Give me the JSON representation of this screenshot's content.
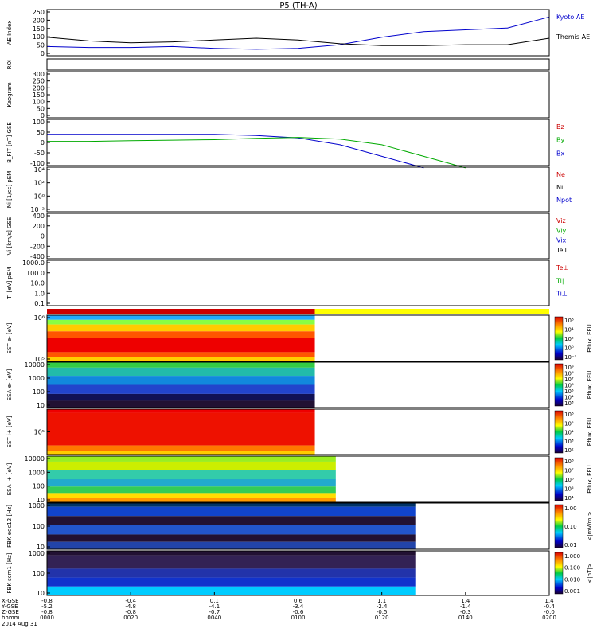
{
  "title": "P5 (TH-A)",
  "date_label": "2014 Aug 31",
  "panels": [
    {
      "id": "ae",
      "ylabel": "AE Index",
      "ticks": [
        "250",
        "200",
        "150",
        "100",
        "50",
        "0"
      ],
      "legend": [
        {
          "text": "Kyoto AE",
          "color": "#0000cc"
        },
        {
          "text": "Themis AE",
          "color": "#000000"
        }
      ]
    },
    {
      "id": "roi",
      "ylabel": "ROI",
      "ticks": [],
      "legend": []
    },
    {
      "id": "keogram",
      "ylabel": "Keogram",
      "ticks": [
        "300",
        "250",
        "200",
        "150",
        "100",
        "50",
        "0"
      ],
      "legend": []
    },
    {
      "id": "bfit",
      "ylabel": "B_FIT [nT] GSE",
      "ticks": [
        "100",
        "50",
        "0",
        "-50",
        "-100"
      ],
      "legend": [
        {
          "text": "Bz",
          "color": "#cc0000"
        },
        {
          "text": "By",
          "color": "#00aa00"
        },
        {
          "text": "Bx",
          "color": "#0000cc"
        }
      ]
    },
    {
      "id": "ni",
      "ylabel": "Ni [1/cc] pEM",
      "ticks": [
        "10⁴",
        "10²",
        "10⁰",
        "10⁻²"
      ],
      "legend": [
        {
          "text": "Ne",
          "color": "#cc0000"
        },
        {
          "text": "Ni",
          "color": "#000000"
        },
        {
          "text": "Npot",
          "color": "#0000cc"
        }
      ]
    },
    {
      "id": "vi",
      "ylabel": "Vi [km/s] GSE",
      "ticks": [
        "400",
        "200",
        "0",
        "-200",
        "-400"
      ],
      "legend": [
        {
          "text": "Viz",
          "color": "#cc0000"
        },
        {
          "text": "Viy",
          "color": "#00aa00"
        },
        {
          "text": "Vix",
          "color": "#0000cc"
        },
        {
          "text": "Tell",
          "color": "#000000"
        }
      ]
    },
    {
      "id": "ti",
      "ylabel": "Ti [eV] pEM",
      "ticks": [
        "1000.0",
        "100.0",
        "10.0",
        "1.0",
        "0.1"
      ],
      "legend": [
        {
          "text": "Te⊥",
          "color": "#cc0000"
        },
        {
          "text": "Ti∥",
          "color": "#00aa00"
        },
        {
          "text": "Ti⊥",
          "color": "#0000cc"
        }
      ]
    },
    {
      "id": "sst_e",
      "ylabel": "SST e- [eV]",
      "ticks": [
        "10⁶",
        "10⁵"
      ],
      "legend": []
    },
    {
      "id": "esa_e",
      "ylabel": "ESA e- [eV]",
      "ticks": [
        "10000",
        "1000",
        "100",
        "10"
      ],
      "legend": []
    },
    {
      "id": "sst_i",
      "ylabel": "SST i+ [eV]",
      "ticks": [
        "10⁵"
      ],
      "legend": []
    },
    {
      "id": "esa_i",
      "ylabel": "ESA i+ [eV]",
      "ticks": [
        "10000",
        "1000",
        "100",
        "10"
      ],
      "legend": []
    },
    {
      "id": "fbk_edc",
      "ylabel": "FBK edc12 [Hz]",
      "ticks": [
        "1000",
        "100",
        "10"
      ],
      "legend": []
    },
    {
      "id": "fbk_scm",
      "ylabel": "FBK scm1 [Hz]",
      "ticks": [
        "1000",
        "100",
        "10"
      ],
      "legend": []
    }
  ],
  "colorbars": [
    {
      "panel": "sst_e",
      "label": "Eflux, EFU",
      "ticks": [
        "10⁶",
        "10⁴",
        "10²",
        "10⁰",
        "10⁻²"
      ]
    },
    {
      "panel": "esa_e",
      "label": "Eflux, EFU",
      "ticks": [
        "10⁹",
        "10⁸",
        "10⁷",
        "10⁶",
        "10⁵",
        "10⁴",
        "10³"
      ]
    },
    {
      "panel": "sst_i",
      "label": "Eflux, EFU",
      "ticks": [
        "10⁶",
        "10⁵",
        "10⁴",
        "10³",
        "10²"
      ]
    },
    {
      "panel": "esa_i",
      "label": "Eflux, EFU",
      "ticks": [
        "10⁸",
        "10⁷",
        "10⁶",
        "10⁵",
        "10⁴"
      ]
    },
    {
      "panel": "fbk_edc",
      "label": "<|mV/m|>",
      "ticks": [
        "1.00",
        "0.10",
        "0.01"
      ]
    },
    {
      "panel": "fbk_scm",
      "label": "<|nT|>",
      "ticks": [
        "1.000",
        "0.100",
        "0.010",
        "0.001"
      ]
    }
  ],
  "x_axis": {
    "row_labels": [
      "X-GSE",
      "Y-GSE",
      "Z-GSE",
      "hhmm"
    ],
    "ticks": [
      {
        "x": "-0.8",
        "y": "-5.2",
        "z": "-0.8",
        "t": "0000"
      },
      {
        "x": "-0.4",
        "y": "-4.8",
        "z": "-0.8",
        "t": "0020"
      },
      {
        "x": "0.1",
        "y": "-4.1",
        "z": "-0.7",
        "t": "0040"
      },
      {
        "x": "0.6",
        "y": "-3.4",
        "z": "-0.6",
        "t": "0100"
      },
      {
        "x": "1.1",
        "y": "-2.4",
        "z": "-0.5",
        "t": "0120"
      },
      {
        "x": "1.4",
        "y": "-1.4",
        "z": "-0.3",
        "t": "0140"
      },
      {
        "x": "1.4",
        "y": "-0.4",
        "z": "-0.0",
        "t": "0200"
      }
    ]
  },
  "chart_data": {
    "type": "line",
    "x_minutes": [
      0,
      10,
      20,
      30,
      40,
      50,
      60,
      70,
      80,
      90,
      100,
      110,
      120
    ],
    "series": [
      {
        "name": "Kyoto AE",
        "panel": "ae",
        "color": "#0000cc",
        "values": [
          50,
          45,
          45,
          50,
          40,
          35,
          40,
          60,
          100,
          130,
          140,
          150,
          210
        ]
      },
      {
        "name": "Themis AE",
        "panel": "ae",
        "color": "#000000",
        "values": [
          100,
          80,
          70,
          75,
          85,
          95,
          85,
          65,
          55,
          55,
          60,
          60,
          95
        ]
      },
      {
        "name": "Bx",
        "panel": "bfit",
        "color": "#0000cc",
        "values": [
          35,
          35,
          35,
          35,
          35,
          30,
          20,
          -10,
          -60,
          -110,
          null,
          null,
          null
        ]
      },
      {
        "name": "By",
        "panel": "bfit",
        "color": "#00aa00",
        "values": [
          5,
          5,
          8,
          10,
          12,
          18,
          22,
          15,
          -10,
          -60,
          -110,
          null,
          null
        ]
      }
    ],
    "colors": {
      "sw_bar_red": "#cc0000",
      "sw_bar_yellow": "#ffff00",
      "axis": "#000000"
    }
  }
}
